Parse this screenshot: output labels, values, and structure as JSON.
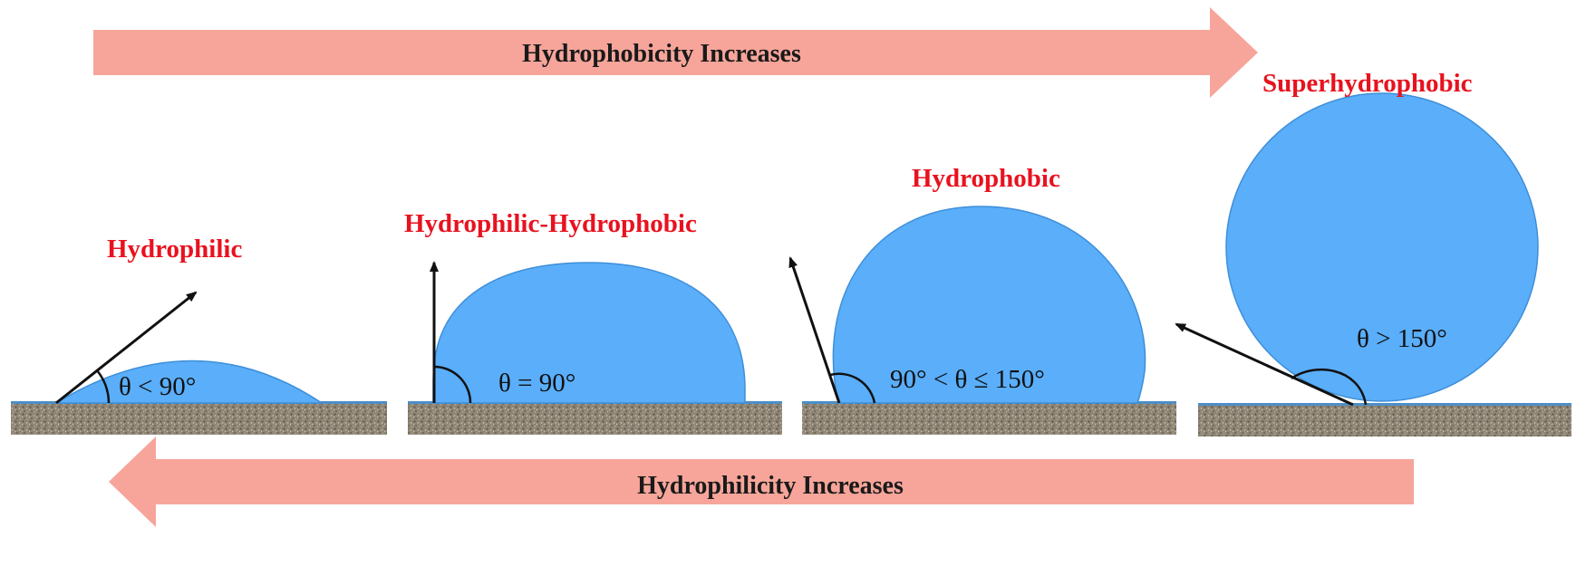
{
  "colors": {
    "arrow_fill": "#f7a59a",
    "label_red": "#e8121f",
    "droplet_fill": "#5aaefa",
    "droplet_edge": "#3f8fd8",
    "substrate": "#8e8574",
    "substrate_top": "#4d8fc7"
  },
  "top_arrow": {
    "label": "Hydrophobicity Increases",
    "direction": "right"
  },
  "bottom_arrow": {
    "label": "Hydrophilicity Increases",
    "direction": "left"
  },
  "states": [
    {
      "label": "Hydrophilic",
      "angle_text": "θ < 90°"
    },
    {
      "label": "Hydrophilic-Hydrophobic",
      "angle_text": "θ = 90°"
    },
    {
      "label": "Hydrophobic",
      "angle_text": "90° < θ ≤ 150°"
    },
    {
      "label": "Superhydrophobic",
      "angle_text": "θ > 150°"
    }
  ]
}
